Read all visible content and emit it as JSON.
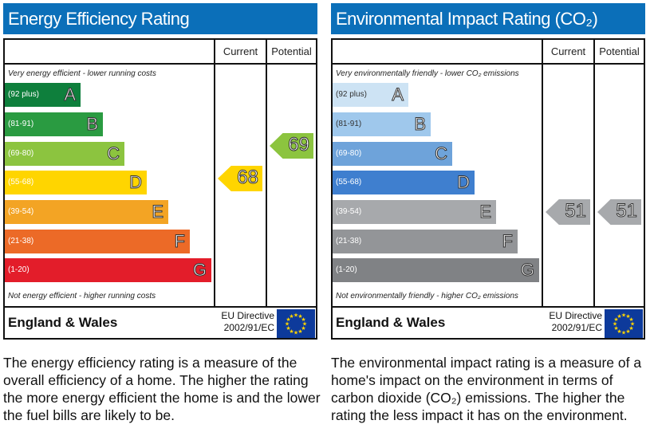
{
  "charts": [
    {
      "title": "Energy Efficiency Rating",
      "col_current": "Current",
      "col_potential": "Potential",
      "top_note": "Very energy efficient - lower running costs",
      "bottom_note": "Not energy efficient - higher running costs",
      "footer_region": "England & Wales",
      "footer_directive_1": "EU Directive",
      "footer_directive_2": "2002/91/EC",
      "description": "The energy efficiency rating is a measure of the overall efficiency of a home. The higher the rating the more energy efficient the home is and the lower the fuel bills are likely to be.",
      "current": "68",
      "potential": "69",
      "current_color": "#ffd500",
      "potential_color": "#8cc43f",
      "bands": [
        {
          "range": "(92 plus)",
          "letter": "A",
          "color": "#0e7f3c"
        },
        {
          "range": "(81-91)",
          "letter": "B",
          "color": "#2a9b41"
        },
        {
          "range": "(69-80)",
          "letter": "C",
          "color": "#8cc43f"
        },
        {
          "range": "(55-68)",
          "letter": "D",
          "color": "#ffd500"
        },
        {
          "range": "(39-54)",
          "letter": "E",
          "color": "#f3a424"
        },
        {
          "range": "(21-38)",
          "letter": "F",
          "color": "#ec6a27"
        },
        {
          "range": "(1-20)",
          "letter": "G",
          "color": "#e31d2a"
        }
      ]
    },
    {
      "title": "Environmental Impact Rating (CO₂)",
      "col_current": "Current",
      "col_potential": "Potential",
      "top_note": "Very environmentally friendly - lower CO₂ emissions",
      "bottom_note": "Not environmentally friendly - higher CO₂ emissions",
      "footer_region": "England & Wales",
      "footer_directive_1": "EU Directive",
      "footer_directive_2": "2002/91/EC",
      "description": "The environmental impact rating is a measure of a home's impact on the environment in terms of carbon dioxide (CO₂) emissions. The higher the rating the less impact it has on the environment.",
      "current": "51",
      "potential": "51",
      "current_color": "#a7a9ac",
      "potential_color": "#a7a9ac",
      "bands": [
        {
          "range": "(92 plus)",
          "letter": "A",
          "color": "#cde3f4"
        },
        {
          "range": "(81-91)",
          "letter": "B",
          "color": "#9fc8ec"
        },
        {
          "range": "(69-80)",
          "letter": "C",
          "color": "#6ea3da"
        },
        {
          "range": "(55-68)",
          "letter": "D",
          "color": "#3f7fcf"
        },
        {
          "range": "(39-54)",
          "letter": "E",
          "color": "#a7a9ac"
        },
        {
          "range": "(21-38)",
          "letter": "F",
          "color": "#939598"
        },
        {
          "range": "(1-20)",
          "letter": "G",
          "color": "#808285"
        }
      ]
    }
  ],
  "chart_data": [
    {
      "type": "table",
      "title": "Energy Efficiency Rating",
      "current": 68,
      "potential": 69
    },
    {
      "type": "table",
      "title": "Environmental Impact Rating (CO₂)",
      "current": 51,
      "potential": 51
    }
  ]
}
